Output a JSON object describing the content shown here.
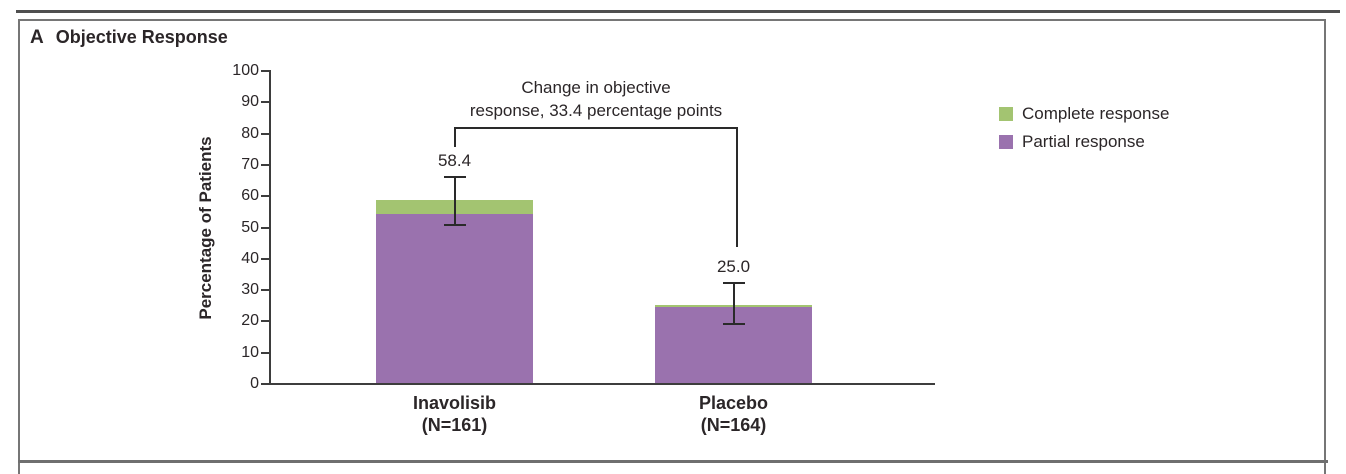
{
  "panel": {
    "label": "A",
    "title": "Objective Response"
  },
  "annotation": {
    "line1": "Change in objective",
    "line2": "response, 33.4 percentage points"
  },
  "legend": {
    "items": [
      {
        "label": "Complete response",
        "color": "#a3c471"
      },
      {
        "label": "Partial response",
        "color": "#9a72ae"
      }
    ]
  },
  "colors": {
    "complete_response": "#a3c471",
    "partial_response": "#9a72ae",
    "axis": "#3d3d3d",
    "frame": "#767676",
    "top_rule": "#4f4f4f",
    "text": "#2b2628"
  },
  "chart_data": {
    "type": "bar",
    "stacked": true,
    "title": "Objective Response",
    "xlabel": "",
    "ylabel": "Percentage of Patients",
    "ylim": [
      0,
      100
    ],
    "yticks": [
      0,
      10,
      20,
      30,
      40,
      50,
      60,
      70,
      80,
      90,
      100
    ],
    "grid": false,
    "legend_position": "right",
    "categories": [
      "Inavolisib",
      "Placebo"
    ],
    "category_sublabels": [
      "(N=161)",
      "(N=164)"
    ],
    "series": [
      {
        "name": "Partial response",
        "color": "#9a72ae",
        "values": [
          54.0,
          24.4
        ]
      },
      {
        "name": "Complete response",
        "color": "#a3c471",
        "values": [
          4.4,
          0.6
        ]
      }
    ],
    "totals": [
      58.4,
      25.0
    ],
    "total_labels": [
      "58.4",
      "25.0"
    ],
    "error_bars": [
      {
        "low": 50.4,
        "high": 66.1
      },
      {
        "low": 18.7,
        "high": 32.4
      }
    ],
    "annotation": "Change in objective response, 33.4 percentage points",
    "difference_percentage_points": 33.4
  }
}
